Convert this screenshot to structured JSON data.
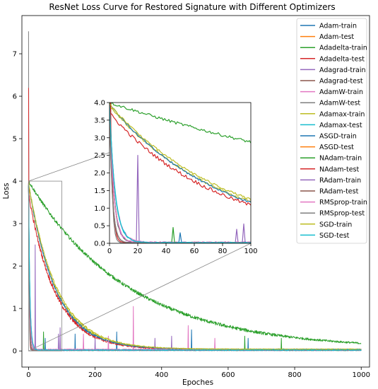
{
  "chart_data": {
    "type": "line",
    "title": "ResNet Loss Curve for Restored Signature with Different Optimizers",
    "xlabel": "Epoches",
    "ylabel": "Loss",
    "xlim": [
      -20,
      1025
    ],
    "ylim": [
      -0.38,
      7.9
    ],
    "x_ticks": [
      "0",
      "200",
      "400",
      "600",
      "800",
      "1000"
    ],
    "y_ticks": [
      "0",
      "1",
      "2",
      "3",
      "4",
      "5",
      "6",
      "7"
    ],
    "legend_position": "top-right",
    "inset": {
      "xlim": [
        0,
        100
      ],
      "ylim": [
        0,
        4.0
      ],
      "x_ticks": [
        "0",
        "20",
        "40",
        "60",
        "80",
        "100"
      ],
      "y_ticks": [
        "0.0",
        "0.5",
        "1.0",
        "1.5",
        "2.0",
        "2.5",
        "3.0",
        "3.5",
        "4.0"
      ]
    },
    "series": [
      {
        "name": "Adam-train",
        "color": "#1f77b4",
        "start": 3.9,
        "end": 0.02,
        "tau": 3,
        "noise": 0.05,
        "spikes": [
          [
            50,
            0.3
          ],
          [
            140,
            0.4
          ],
          [
            265,
            0.45
          ],
          [
            490,
            0.5
          ],
          [
            660,
            0.3
          ]
        ]
      },
      {
        "name": "Adam-test",
        "color": "#ff7f0e",
        "start": 3.95,
        "end": 0.02,
        "tau": 3,
        "noise": 0.02,
        "spikes": []
      },
      {
        "name": "Adadelta-train",
        "color": "#2ca02c",
        "start": 4.0,
        "end": 0.04,
        "tau": 300,
        "noise": 0.04,
        "spikes": []
      },
      {
        "name": "Adadelta-test",
        "color": "#d62728",
        "start": 3.7,
        "end": 0.03,
        "tau": 80,
        "noise": 0.05,
        "spikes": []
      },
      {
        "name": "Adagrad-train",
        "color": "#9467bd",
        "start": 3.9,
        "end": 0.02,
        "tau": 3,
        "noise": 0.06,
        "spikes": [
          [
            20,
            2.5
          ],
          [
            90,
            0.4
          ],
          [
            200,
            0.3
          ],
          [
            430,
            0.35
          ]
        ]
      },
      {
        "name": "Adagrad-test",
        "color": "#8c564b",
        "start": 3.95,
        "end": 0.02,
        "tau": 2,
        "noise": 0.01,
        "spikes": []
      },
      {
        "name": "AdamW-train",
        "color": "#e377c2",
        "start": 3.9,
        "end": 0.03,
        "tau": 4,
        "noise": 0.06,
        "spikes": [
          [
            315,
            1.05
          ],
          [
            165,
            0.4
          ],
          [
            480,
            0.6
          ]
        ]
      },
      {
        "name": "AdamW-test",
        "color": "#7f7f7f",
        "start": 7.52,
        "end": 0.01,
        "tau": 1.2,
        "noise": 0.01,
        "spikes": []
      },
      {
        "name": "Adamax-train",
        "color": "#bcbd22",
        "start": 3.9,
        "end": 0.04,
        "tau": 82,
        "noise": 0.03,
        "spikes": []
      },
      {
        "name": "Adamax-test",
        "color": "#17becf",
        "start": 3.9,
        "end": 0.02,
        "tau": 4,
        "noise": 0.04,
        "spikes": []
      },
      {
        "name": "ASGD-train",
        "color": "#1f77b4",
        "start": 3.95,
        "end": 0.04,
        "tau": 80,
        "noise": 0.03,
        "spikes": []
      },
      {
        "name": "ASGD-test",
        "color": "#ff7f0e",
        "start": 3.9,
        "end": 0.02,
        "tau": 3,
        "noise": 0.02,
        "spikes": []
      },
      {
        "name": "NAdam-train",
        "color": "#2ca02c",
        "start": 3.9,
        "end": 0.02,
        "tau": 3,
        "noise": 0.05,
        "spikes": [
          [
            45,
            0.45
          ],
          [
            650,
            0.35
          ],
          [
            760,
            0.3
          ]
        ]
      },
      {
        "name": "NAdam-test",
        "color": "#d62728",
        "start": 6.2,
        "end": 0.02,
        "tau": 1.5,
        "noise": 0.03,
        "spikes": []
      },
      {
        "name": "RAdam-train",
        "color": "#9467bd",
        "start": 3.9,
        "end": 0.02,
        "tau": 3,
        "noise": 0.05,
        "spikes": [
          [
            95,
            0.55
          ],
          [
            380,
            0.3
          ]
        ]
      },
      {
        "name": "RAdam-test",
        "color": "#8c564b",
        "start": 3.8,
        "end": 0.02,
        "tau": 2,
        "noise": 0.02,
        "spikes": []
      },
      {
        "name": "RMSprop-train",
        "color": "#e377c2",
        "start": 3.9,
        "end": 0.03,
        "tau": 3,
        "noise": 0.06,
        "spikes": [
          [
            240,
            0.35
          ],
          [
            560,
            0.3
          ]
        ]
      },
      {
        "name": "RMSprop-test",
        "color": "#7f7f7f",
        "start": 3.9,
        "end": 0.02,
        "tau": 2,
        "noise": 0.01,
        "spikes": []
      },
      {
        "name": "SGD-train",
        "color": "#bcbd22",
        "start": 3.95,
        "end": 0.04,
        "tau": 85,
        "noise": 0.03,
        "spikes": []
      },
      {
        "name": "SGD-test",
        "color": "#17becf",
        "start": 3.9,
        "end": 0.02,
        "tau": 4,
        "noise": 0.04,
        "spikes": []
      }
    ]
  }
}
